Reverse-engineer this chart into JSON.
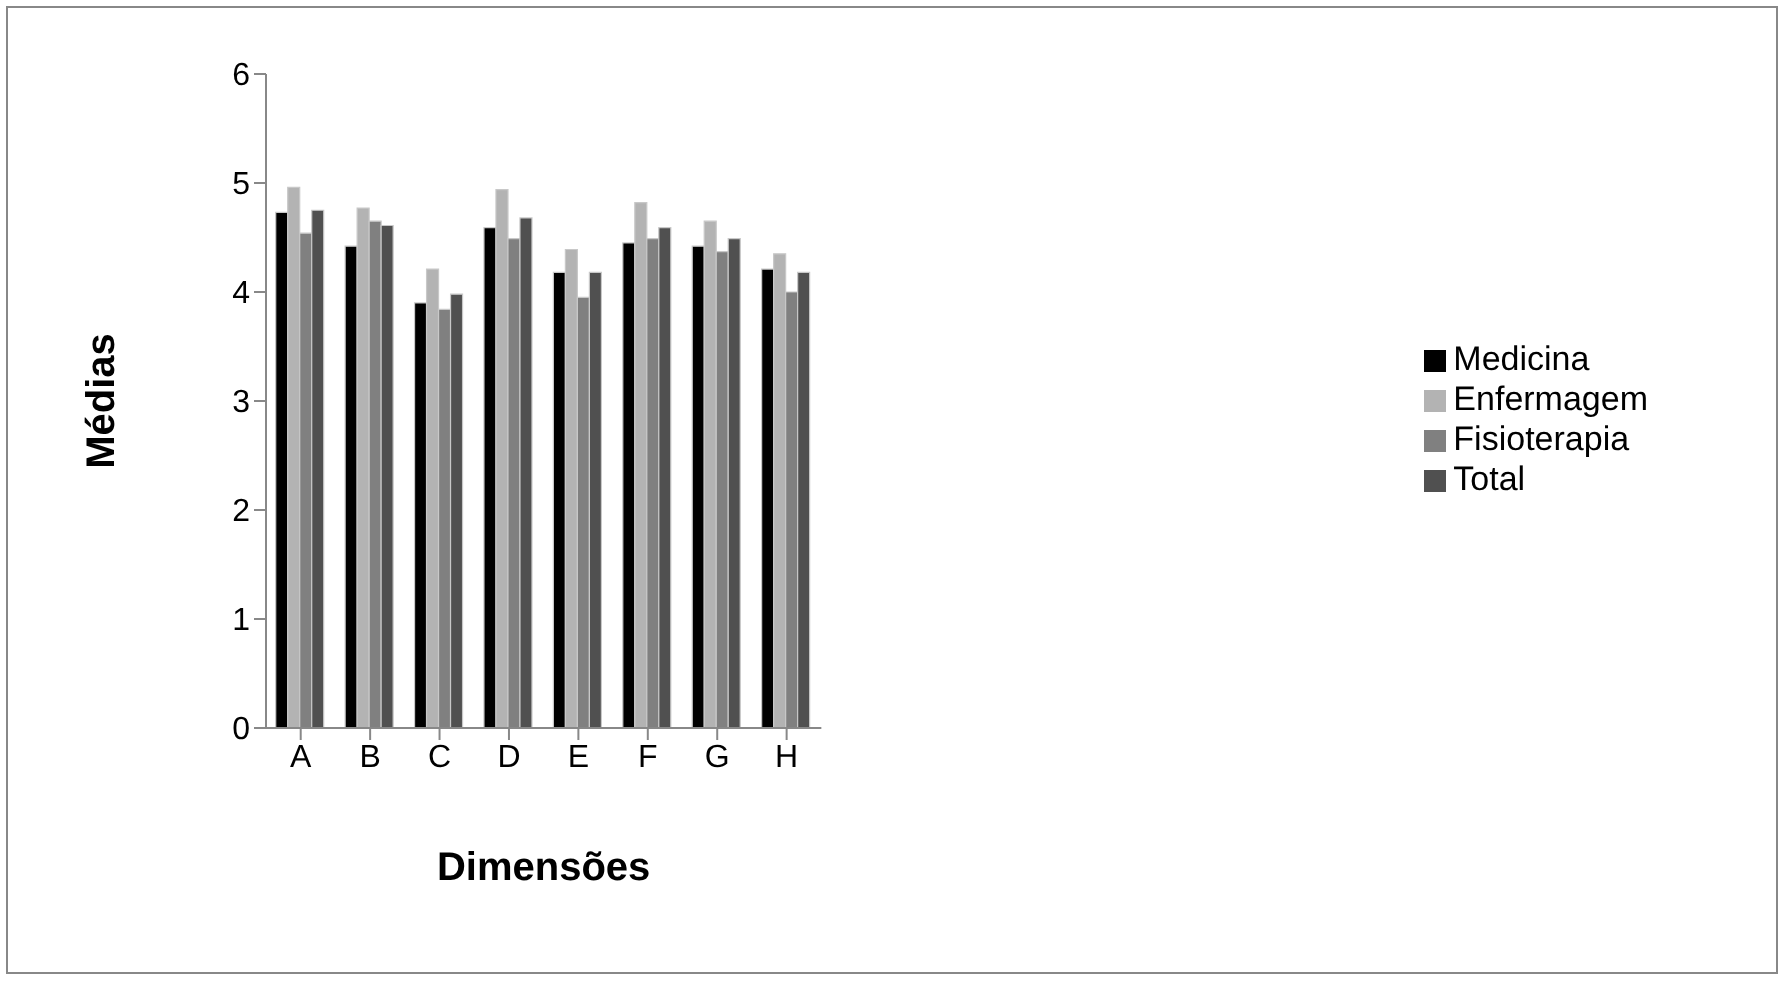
{
  "chart_data": {
    "type": "bar",
    "xlabel": "Dimensões",
    "ylabel": "Médias",
    "categories": [
      "A",
      "B",
      "C",
      "D",
      "E",
      "F",
      "G",
      "H"
    ],
    "series": [
      {
        "name": "Medicina",
        "color": "#000000",
        "values": [
          4.73,
          4.42,
          3.9,
          4.59,
          4.18,
          4.45,
          4.42,
          4.21
        ]
      },
      {
        "name": "Enfermagem",
        "color": "#b3b3b3",
        "values": [
          4.96,
          4.77,
          4.21,
          4.94,
          4.39,
          4.82,
          4.65,
          4.35
        ]
      },
      {
        "name": "Fisioterapia",
        "color": "#808080",
        "values": [
          4.54,
          4.65,
          3.84,
          4.49,
          3.95,
          4.49,
          4.37,
          4.0
        ]
      },
      {
        "name": "Total",
        "color": "#505050",
        "values": [
          4.75,
          4.61,
          3.98,
          4.68,
          4.18,
          4.59,
          4.49,
          4.18
        ]
      }
    ],
    "ylim": [
      0,
      6
    ],
    "yticks": [
      0,
      1,
      2,
      3,
      4,
      5,
      6
    ],
    "grid": false,
    "legend": "right"
  }
}
